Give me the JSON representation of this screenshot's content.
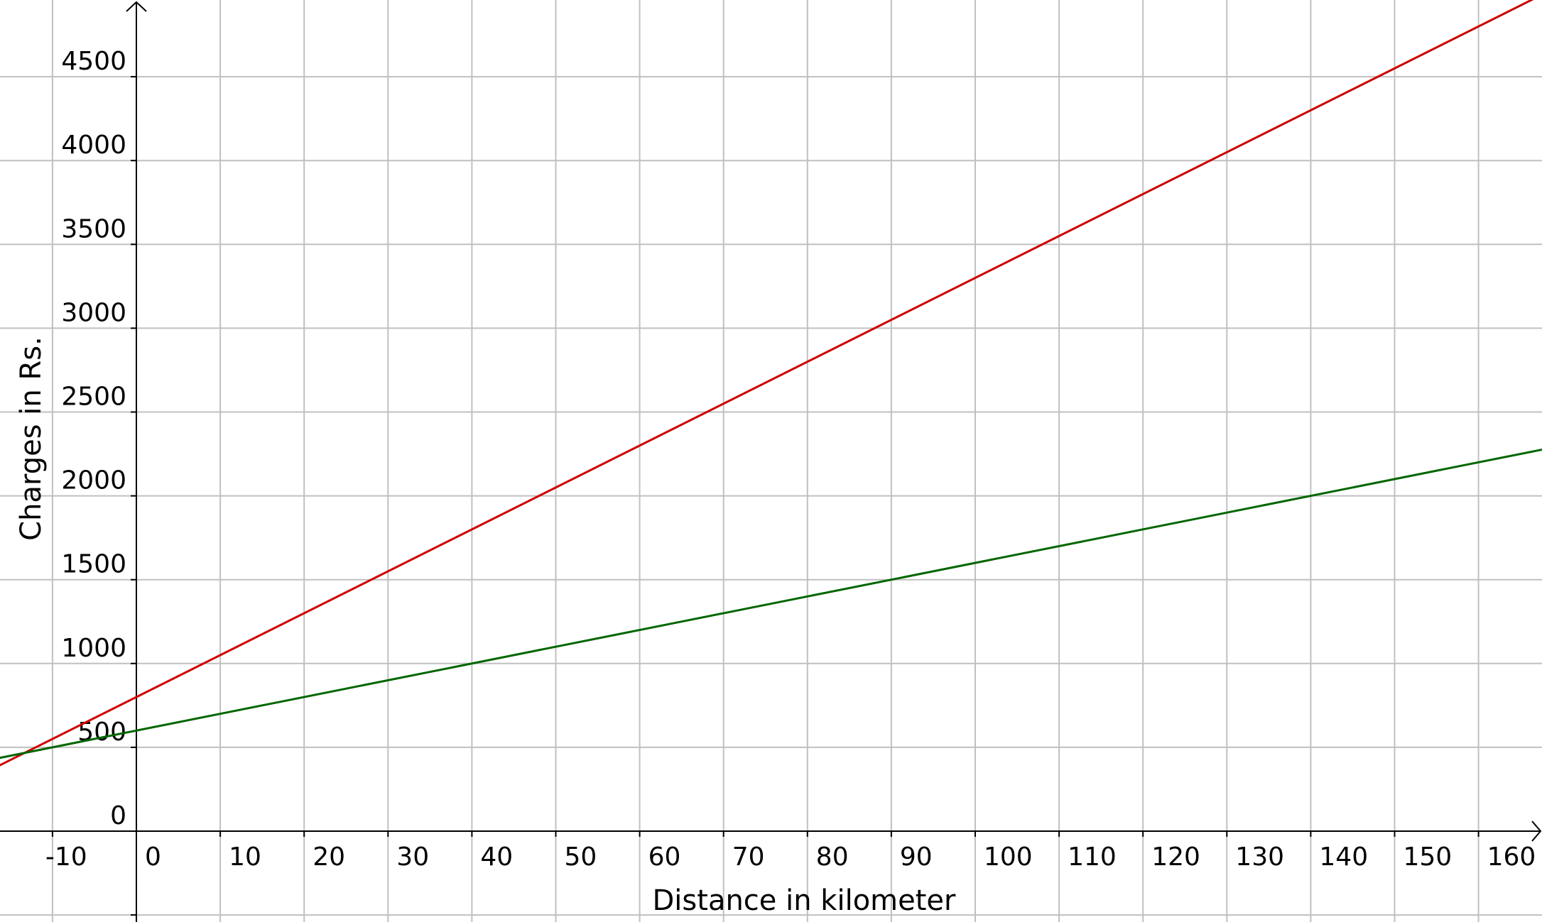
{
  "chart_data": {
    "type": "line",
    "title": "",
    "xlabel": "Distance in kilometer",
    "ylabel": "Charges in Rs.",
    "xlim": [
      -16.3,
      167.7
    ],
    "ylim": [
      -538,
      4920
    ],
    "grid": true,
    "x_ticks": [
      -10,
      0,
      10,
      20,
      30,
      40,
      50,
      60,
      70,
      80,
      90,
      100,
      110,
      120,
      130,
      140,
      150,
      160
    ],
    "y_ticks": [
      0,
      500,
      1000,
      1500,
      2000,
      2500,
      3000,
      3500,
      4000,
      4500
    ],
    "series": [
      {
        "color": "#cc0000",
        "intercept": 800,
        "slope": 25,
        "x": [
          -16.3,
          167.7
        ],
        "y": [
          392.5,
          4992.5
        ]
      },
      {
        "color": "#006600",
        "intercept": 600,
        "slope": 10,
        "x": [
          -16.3,
          167.7
        ],
        "y": [
          437,
          2277
        ]
      }
    ]
  }
}
